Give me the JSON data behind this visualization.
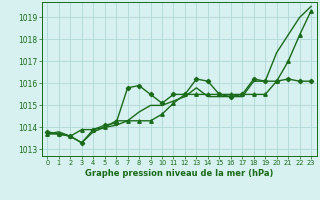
{
  "background_color": "#d7f0f0",
  "grid_color": "#b0d8d8",
  "line_color": "#1a6b1a",
  "title": "Graphe pression niveau de la mer (hPa)",
  "xlim": [
    -0.5,
    23.5
  ],
  "ylim": [
    1012.7,
    1019.7
  ],
  "yticks": [
    1013,
    1014,
    1015,
    1016,
    1017,
    1018,
    1019
  ],
  "xticks": [
    0,
    1,
    2,
    3,
    4,
    5,
    6,
    7,
    8,
    9,
    10,
    11,
    12,
    13,
    14,
    15,
    16,
    17,
    18,
    19,
    20,
    21,
    22,
    23
  ],
  "series1_x": [
    0,
    1,
    2,
    3,
    4,
    5,
    6,
    7,
    8,
    9,
    10,
    11,
    12,
    13,
    14,
    15,
    16,
    17,
    18,
    19,
    20,
    21,
    22,
    23
  ],
  "series1_y": [
    1013.7,
    1013.8,
    1013.6,
    1013.3,
    1013.8,
    1014.0,
    1014.1,
    1014.3,
    1014.7,
    1015.0,
    1015.0,
    1015.2,
    1015.4,
    1015.8,
    1015.4,
    1015.4,
    1015.4,
    1015.4,
    1016.1,
    1016.1,
    1017.4,
    1018.2,
    1019.0,
    1019.5
  ],
  "series2_x": [
    0,
    1,
    2,
    3,
    4,
    5,
    6,
    7,
    8,
    9,
    10,
    11,
    12,
    13,
    14,
    15,
    16,
    17,
    18,
    19,
    20,
    21,
    22,
    23
  ],
  "series2_y": [
    1013.8,
    1013.7,
    1013.6,
    1013.3,
    1013.9,
    1014.1,
    1014.2,
    1015.8,
    1015.9,
    1015.5,
    1015.1,
    1015.5,
    1015.5,
    1016.2,
    1016.1,
    1015.5,
    1015.4,
    1015.5,
    1016.2,
    1016.1,
    1016.1,
    1016.2,
    1016.1,
    1016.1
  ],
  "series3_x": [
    0,
    1,
    2,
    3,
    4,
    5,
    6,
    7,
    8,
    9,
    10,
    11,
    12,
    13,
    14,
    15,
    16,
    17,
    18,
    19,
    20,
    21,
    22,
    23
  ],
  "series3_y": [
    1013.7,
    1013.7,
    1013.6,
    1013.9,
    1013.9,
    1014.0,
    1014.3,
    1014.3,
    1014.3,
    1014.3,
    1014.6,
    1015.1,
    1015.5,
    1015.5,
    1015.5,
    1015.5,
    1015.5,
    1015.5,
    1015.5,
    1015.5,
    1016.1,
    1017.0,
    1018.2,
    1019.3
  ]
}
